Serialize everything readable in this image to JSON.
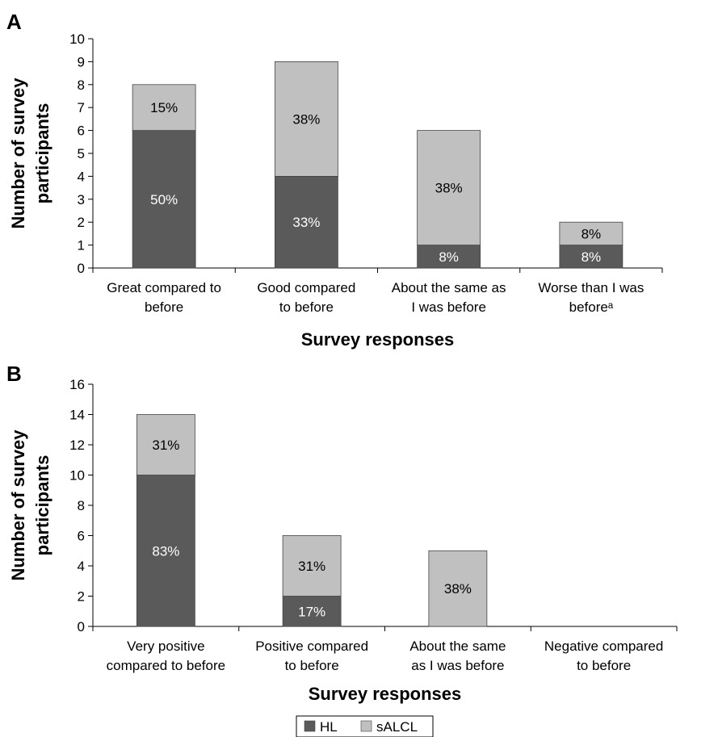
{
  "colors": {
    "HL": "#5a5a5a",
    "sALCL": "#c0c0c0",
    "label_on_dark": "#ffffff",
    "label_on_light": "#000000"
  },
  "legend": {
    "items": [
      "HL",
      "sALCL"
    ]
  },
  "chart_data": [
    {
      "panel": "A",
      "type": "bar",
      "stacked": true,
      "xlabel": "Survey responses",
      "ylabel": "Number of survey participants",
      "ylim": [
        0,
        10
      ],
      "yticks": [
        0,
        1,
        2,
        3,
        4,
        5,
        6,
        7,
        8,
        9,
        10
      ],
      "categories": [
        [
          "Great compared to",
          "before"
        ],
        [
          "Good compared",
          "to before"
        ],
        [
          "About the same as",
          "I was before"
        ],
        [
          "Worse than I was",
          "beforeᵃ"
        ]
      ],
      "series": [
        {
          "name": "HL",
          "values": [
            6,
            4,
            1,
            1
          ],
          "labels": [
            "50%",
            "33%",
            "8%",
            "8%"
          ]
        },
        {
          "name": "sALCL",
          "values": [
            2,
            5,
            5,
            1
          ],
          "labels": [
            "15%",
            "38%",
            "38%",
            "8%"
          ]
        }
      ],
      "grid": false
    },
    {
      "panel": "B",
      "type": "bar",
      "stacked": true,
      "xlabel": "Survey responses",
      "ylabel": "Number of survey participants",
      "ylim": [
        0,
        16
      ],
      "yticks": [
        0,
        2,
        4,
        6,
        8,
        10,
        12,
        14,
        16
      ],
      "categories": [
        [
          "Very positive",
          "compared to before"
        ],
        [
          "Positive compared",
          "to before"
        ],
        [
          "About the same",
          "as I was before"
        ],
        [
          "Negative compared",
          "to before"
        ]
      ],
      "series": [
        {
          "name": "HL",
          "values": [
            10,
            2,
            0,
            0
          ],
          "labels": [
            "83%",
            "17%",
            "",
            ""
          ]
        },
        {
          "name": "sALCL",
          "values": [
            4,
            4,
            5,
            0
          ],
          "labels": [
            "31%",
            "31%",
            "38%",
            ""
          ]
        }
      ],
      "grid": false
    }
  ]
}
